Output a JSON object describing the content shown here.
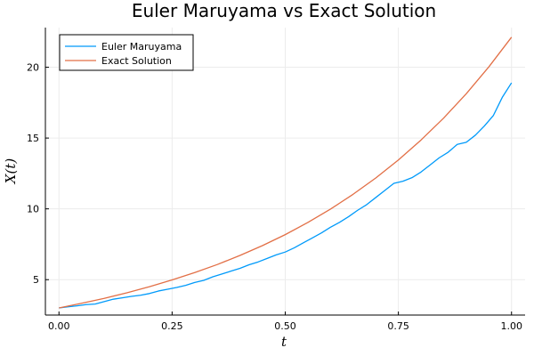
{
  "chart_data": {
    "type": "line",
    "title": "Euler Maruyama vs Exact Solution",
    "xlabel": "t",
    "ylabel": "X(t)",
    "xlim": [
      -0.03,
      1.03
    ],
    "ylim": [
      2.5,
      22.8
    ],
    "xticks": [
      0.0,
      0.25,
      0.5,
      0.75,
      1.0
    ],
    "xtick_labels": [
      "0.00",
      "0.25",
      "0.50",
      "0.75",
      "1.00"
    ],
    "yticks": [
      5,
      10,
      15,
      20
    ],
    "ytick_labels": [
      "5",
      "10",
      "15",
      "20"
    ],
    "grid": true,
    "legend_position": "top-left",
    "series": [
      {
        "name": "Euler Maruyama",
        "color": "#009AFA",
        "x": [
          0.0,
          0.02,
          0.04,
          0.06,
          0.08,
          0.1,
          0.12,
          0.14,
          0.16,
          0.18,
          0.2,
          0.22,
          0.24,
          0.26,
          0.28,
          0.3,
          0.32,
          0.34,
          0.36,
          0.38,
          0.4,
          0.42,
          0.44,
          0.46,
          0.48,
          0.5,
          0.52,
          0.54,
          0.56,
          0.58,
          0.6,
          0.62,
          0.64,
          0.66,
          0.68,
          0.7,
          0.72,
          0.74,
          0.76,
          0.78,
          0.8,
          0.82,
          0.84,
          0.86,
          0.88,
          0.9,
          0.92,
          0.94,
          0.96,
          0.98,
          1.0
        ],
        "y": [
          3.0,
          3.08,
          3.15,
          3.24,
          3.28,
          3.45,
          3.62,
          3.72,
          3.82,
          3.9,
          4.02,
          4.2,
          4.32,
          4.45,
          4.6,
          4.8,
          4.95,
          5.2,
          5.4,
          5.6,
          5.8,
          6.05,
          6.25,
          6.5,
          6.75,
          6.95,
          7.25,
          7.6,
          7.95,
          8.3,
          8.7,
          9.05,
          9.45,
          9.9,
          10.3,
          10.8,
          11.3,
          11.8,
          11.95,
          12.2,
          12.6,
          13.1,
          13.6,
          14.0,
          14.55,
          14.7,
          15.2,
          15.85,
          16.6,
          17.9,
          18.9
        ]
      },
      {
        "name": "Exact Solution",
        "color": "#E26F46",
        "x": [
          0.0,
          0.05,
          0.1,
          0.15,
          0.2,
          0.25,
          0.3,
          0.35,
          0.4,
          0.45,
          0.5,
          0.55,
          0.6,
          0.65,
          0.7,
          0.75,
          0.8,
          0.85,
          0.9,
          0.95,
          1.0
        ],
        "y": [
          3.0,
          3.33,
          3.68,
          4.07,
          4.5,
          4.98,
          5.5,
          6.07,
          6.71,
          7.41,
          8.18,
          9.04,
          9.98,
          11.03,
          12.18,
          13.45,
          14.86,
          16.41,
          18.13,
          20.03,
          22.12
        ]
      }
    ]
  }
}
